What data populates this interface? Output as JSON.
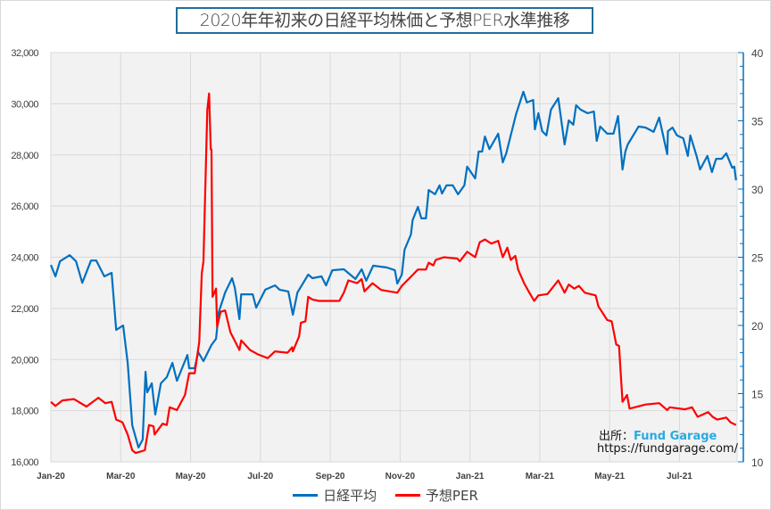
{
  "chart_data": {
    "type": "line",
    "title": "2020年年初来の日経平均株価と予想PER水準推移",
    "x_unit": "months since Jan-2020",
    "x_ticks": [
      {
        "x": 0,
        "label": "Jan-20"
      },
      {
        "x": 2,
        "label": "Mar-20"
      },
      {
        "x": 4,
        "label": "May-20"
      },
      {
        "x": 6,
        "label": "Jul-20"
      },
      {
        "x": 8,
        "label": "Sep-20"
      },
      {
        "x": 10,
        "label": "Nov-20"
      },
      {
        "x": 12,
        "label": "Jan-21"
      },
      {
        "x": 14,
        "label": "Mar-21"
      },
      {
        "x": 16,
        "label": "May-21"
      },
      {
        "x": 18,
        "label": "Jul-21"
      }
    ],
    "xlim": [
      0,
      19.65
    ],
    "y_left": {
      "lim": [
        16000,
        32000
      ],
      "ticks": [
        16000,
        18000,
        20000,
        22000,
        24000,
        26000,
        28000,
        30000,
        32000
      ],
      "labels": [
        "16,000",
        "18,000",
        "20,000",
        "22,000",
        "24,000",
        "26,000",
        "28,000",
        "30,000",
        "32,000"
      ]
    },
    "y_right": {
      "lim": [
        10,
        40
      ],
      "ticks": [
        10,
        15,
        20,
        25,
        30,
        35,
        40
      ],
      "labels": [
        "10",
        "15",
        "20",
        "25",
        "30",
        "35",
        "40"
      ]
    },
    "grid": true,
    "legend_position": "bottom",
    "series": [
      {
        "name": "日経平均",
        "axis": "left",
        "color": "#0070c0",
        "points": [
          [
            0,
            23700
          ],
          [
            0.13,
            23250
          ],
          [
            0.26,
            23840
          ],
          [
            0.54,
            24080
          ],
          [
            0.72,
            23840
          ],
          [
            0.9,
            23000
          ],
          [
            1.15,
            23870
          ],
          [
            1.3,
            23870
          ],
          [
            1.53,
            23250
          ],
          [
            1.74,
            23390
          ],
          [
            1.87,
            21160
          ],
          [
            2.07,
            21330
          ],
          [
            2.2,
            19870
          ],
          [
            2.33,
            17430
          ],
          [
            2.51,
            16560
          ],
          [
            2.63,
            16870
          ],
          [
            2.71,
            19520
          ],
          [
            2.76,
            18720
          ],
          [
            2.89,
            19070
          ],
          [
            2.99,
            17850
          ],
          [
            3.15,
            19070
          ],
          [
            3.32,
            19310
          ],
          [
            3.48,
            19870
          ],
          [
            3.61,
            19170
          ],
          [
            3.91,
            20180
          ],
          [
            3.96,
            19660
          ],
          [
            4.12,
            19660
          ],
          [
            4.22,
            20290
          ],
          [
            4.37,
            19940
          ],
          [
            4.6,
            20570
          ],
          [
            4.73,
            20810
          ],
          [
            4.81,
            21860
          ],
          [
            4.99,
            22620
          ],
          [
            5.19,
            23180
          ],
          [
            5.27,
            22800
          ],
          [
            5.4,
            21580
          ],
          [
            5.45,
            22550
          ],
          [
            5.78,
            22550
          ],
          [
            5.88,
            22030
          ],
          [
            6.14,
            22730
          ],
          [
            6.42,
            22900
          ],
          [
            6.55,
            22730
          ],
          [
            6.8,
            22660
          ],
          [
            6.93,
            21750
          ],
          [
            7.06,
            22620
          ],
          [
            7.37,
            23320
          ],
          [
            7.49,
            23180
          ],
          [
            7.75,
            23250
          ],
          [
            7.88,
            22900
          ],
          [
            8.06,
            23490
          ],
          [
            8.39,
            23530
          ],
          [
            8.72,
            23150
          ],
          [
            8.9,
            23530
          ],
          [
            9.03,
            23080
          ],
          [
            9.23,
            23670
          ],
          [
            9.62,
            23600
          ],
          [
            9.85,
            23490
          ],
          [
            9.92,
            22970
          ],
          [
            10.05,
            23320
          ],
          [
            10.13,
            24300
          ],
          [
            10.31,
            24890
          ],
          [
            10.36,
            25450
          ],
          [
            10.51,
            25970
          ],
          [
            10.61,
            25520
          ],
          [
            10.74,
            25520
          ],
          [
            10.82,
            26630
          ],
          [
            11.0,
            26460
          ],
          [
            11.13,
            26810
          ],
          [
            11.2,
            26490
          ],
          [
            11.33,
            26810
          ],
          [
            11.51,
            26810
          ],
          [
            11.66,
            26460
          ],
          [
            11.84,
            26810
          ],
          [
            11.92,
            27540
          ],
          [
            12.15,
            27080
          ],
          [
            12.25,
            28130
          ],
          [
            12.35,
            28130
          ],
          [
            12.43,
            28720
          ],
          [
            12.56,
            28230
          ],
          [
            12.81,
            28830
          ],
          [
            12.94,
            27710
          ],
          [
            13.04,
            28060
          ],
          [
            13.32,
            29590
          ],
          [
            13.53,
            30470
          ],
          [
            13.63,
            30050
          ],
          [
            13.81,
            30150
          ],
          [
            13.86,
            29000
          ],
          [
            13.96,
            29630
          ],
          [
            14.07,
            28930
          ],
          [
            14.19,
            28760
          ],
          [
            14.32,
            29770
          ],
          [
            14.53,
            30220
          ],
          [
            14.71,
            28410
          ],
          [
            14.83,
            29350
          ],
          [
            14.96,
            29180
          ],
          [
            15.04,
            29940
          ],
          [
            15.17,
            29770
          ],
          [
            15.37,
            29630
          ],
          [
            15.55,
            29700
          ],
          [
            15.63,
            28550
          ],
          [
            15.73,
            29110
          ],
          [
            15.93,
            28830
          ],
          [
            16.11,
            28830
          ],
          [
            16.24,
            29520
          ],
          [
            16.37,
            27430
          ],
          [
            16.45,
            28130
          ],
          [
            16.52,
            28410
          ],
          [
            16.83,
            29110
          ],
          [
            17.03,
            29070
          ],
          [
            17.26,
            28900
          ],
          [
            17.42,
            29460
          ],
          [
            17.65,
            28030
          ],
          [
            17.67,
            28930
          ],
          [
            17.8,
            29070
          ],
          [
            17.93,
            28760
          ],
          [
            18.11,
            28650
          ],
          [
            18.24,
            27960
          ],
          [
            18.31,
            28760
          ],
          [
            18.49,
            27960
          ],
          [
            18.59,
            27430
          ],
          [
            18.8,
            27960
          ],
          [
            18.93,
            27330
          ],
          [
            19.05,
            27850
          ],
          [
            19.21,
            27850
          ],
          [
            19.34,
            28060
          ],
          [
            19.51,
            27500
          ],
          [
            19.57,
            27540
          ],
          [
            19.62,
            27010
          ]
        ]
      },
      {
        "name": "予想PER",
        "axis": "right",
        "color": "#ff0000",
        "points": [
          [
            0,
            14.4
          ],
          [
            0.13,
            14.1
          ],
          [
            0.33,
            14.5
          ],
          [
            0.66,
            14.6
          ],
          [
            1.02,
            14.05
          ],
          [
            1.36,
            14.7
          ],
          [
            1.56,
            14.3
          ],
          [
            1.74,
            14.4
          ],
          [
            1.87,
            13.1
          ],
          [
            2.05,
            12.9
          ],
          [
            2.2,
            12.0
          ],
          [
            2.33,
            10.85
          ],
          [
            2.43,
            10.65
          ],
          [
            2.69,
            10.85
          ],
          [
            2.81,
            12.7
          ],
          [
            2.94,
            12.6
          ],
          [
            2.97,
            12.0
          ],
          [
            3.2,
            12.8
          ],
          [
            3.32,
            12.7
          ],
          [
            3.4,
            14.0
          ],
          [
            3.61,
            13.8
          ],
          [
            3.84,
            14.9
          ],
          [
            3.96,
            16.5
          ],
          [
            4.12,
            16.5
          ],
          [
            4.25,
            18.8
          ],
          [
            4.32,
            23.8
          ],
          [
            4.37,
            24.7
          ],
          [
            4.48,
            35.8
          ],
          [
            4.53,
            37.0
          ],
          [
            4.58,
            32.9
          ],
          [
            4.6,
            32.9
          ],
          [
            4.63,
            22.1
          ],
          [
            4.73,
            22.7
          ],
          [
            4.76,
            19.9
          ],
          [
            4.86,
            21.0
          ],
          [
            4.99,
            21.1
          ],
          [
            5.14,
            19.5
          ],
          [
            5.4,
            18.2
          ],
          [
            5.45,
            18.9
          ],
          [
            5.7,
            18.2
          ],
          [
            5.91,
            17.9
          ],
          [
            6.21,
            17.6
          ],
          [
            6.42,
            18.1
          ],
          [
            6.78,
            18.0
          ],
          [
            6.91,
            18.4
          ],
          [
            6.93,
            18.1
          ],
          [
            7.11,
            19.2
          ],
          [
            7.16,
            20.2
          ],
          [
            7.29,
            20.3
          ],
          [
            7.37,
            22.1
          ],
          [
            7.49,
            21.9
          ],
          [
            7.67,
            21.8
          ],
          [
            8.26,
            21.8
          ],
          [
            8.39,
            22.4
          ],
          [
            8.52,
            23.3
          ],
          [
            8.77,
            23.1
          ],
          [
            8.9,
            23.4
          ],
          [
            8.98,
            22.5
          ],
          [
            9.21,
            23.1
          ],
          [
            9.46,
            22.6
          ],
          [
            9.92,
            22.4
          ],
          [
            10.05,
            22.9
          ],
          [
            10.36,
            23.7
          ],
          [
            10.51,
            24.1
          ],
          [
            10.74,
            24.1
          ],
          [
            10.82,
            24.6
          ],
          [
            10.95,
            24.4
          ],
          [
            11.02,
            24.8
          ],
          [
            11.25,
            25.0
          ],
          [
            11.64,
            24.9
          ],
          [
            11.71,
            24.7
          ],
          [
            11.92,
            25.4
          ],
          [
            12.15,
            25.0
          ],
          [
            12.28,
            26.1
          ],
          [
            12.43,
            26.3
          ],
          [
            12.61,
            26.0
          ],
          [
            12.81,
            26.2
          ],
          [
            12.94,
            25.0
          ],
          [
            13.07,
            25.7
          ],
          [
            13.17,
            24.8
          ],
          [
            13.3,
            25.1
          ],
          [
            13.38,
            24.1
          ],
          [
            13.55,
            23.1
          ],
          [
            13.68,
            22.5
          ],
          [
            13.84,
            21.8
          ],
          [
            13.96,
            22.2
          ],
          [
            14.22,
            22.3
          ],
          [
            14.53,
            23.3
          ],
          [
            14.71,
            22.4
          ],
          [
            14.83,
            23.0
          ],
          [
            14.99,
            22.7
          ],
          [
            15.12,
            22.9
          ],
          [
            15.29,
            22.4
          ],
          [
            15.6,
            22.2
          ],
          [
            15.68,
            21.4
          ],
          [
            15.93,
            20.4
          ],
          [
            16.06,
            20.3
          ],
          [
            16.19,
            18.6
          ],
          [
            16.27,
            18.5
          ],
          [
            16.37,
            14.4
          ],
          [
            16.5,
            14.9
          ],
          [
            16.57,
            13.9
          ],
          [
            17.03,
            14.2
          ],
          [
            17.42,
            14.3
          ],
          [
            17.65,
            13.8
          ],
          [
            17.72,
            14.0
          ],
          [
            18.16,
            13.85
          ],
          [
            18.36,
            14.0
          ],
          [
            18.52,
            13.3
          ],
          [
            18.82,
            13.65
          ],
          [
            18.95,
            13.3
          ],
          [
            19.08,
            13.1
          ],
          [
            19.34,
            13.25
          ],
          [
            19.46,
            12.9
          ],
          [
            19.62,
            12.7
          ]
        ]
      }
    ]
  },
  "source": {
    "prefix": "出所：",
    "brand": "Fund Garage",
    "url": "https://fundgarage.com/"
  }
}
